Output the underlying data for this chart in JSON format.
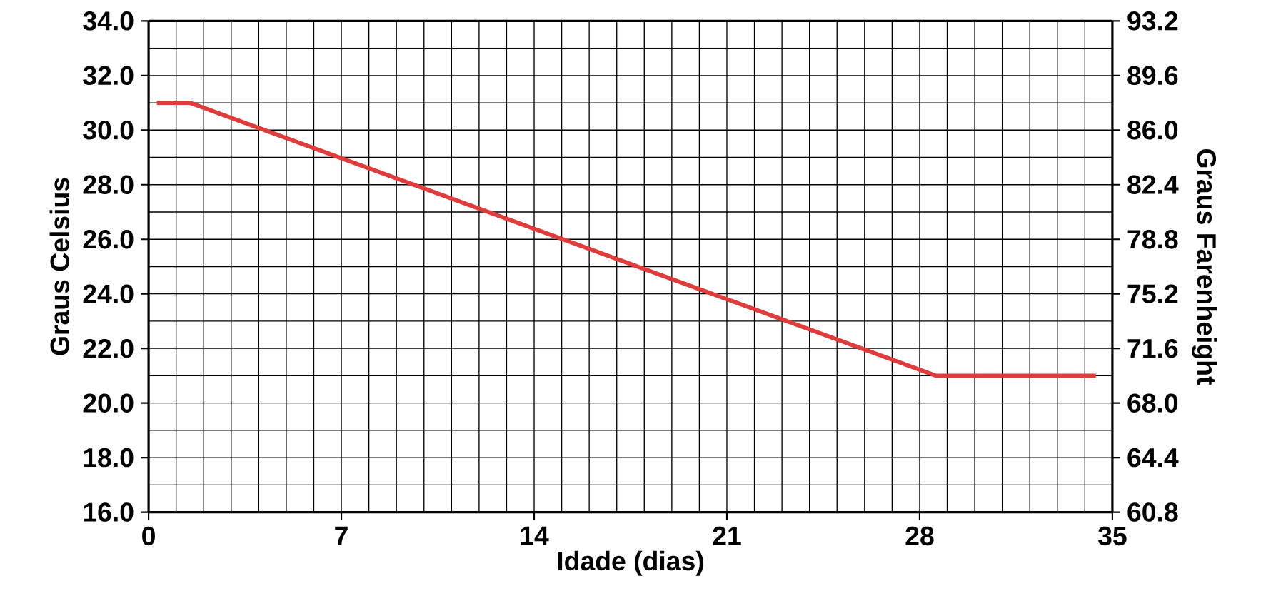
{
  "chart_data": {
    "type": "line",
    "xlabel": "Idade (dias)",
    "ylabel": "Graus Celsius",
    "y2label": "Graus Farenheight",
    "x": [
      0.3,
      1.5,
      28.6,
      34.4
    ],
    "series": [
      {
        "color": "#e03c3c",
        "values": [
          31.0,
          31.0,
          21.0,
          21.0
        ]
      }
    ],
    "xlim": [
      0,
      35
    ],
    "xticks": [
      0,
      7,
      14,
      21,
      28,
      35
    ],
    "ylim": [
      16,
      34
    ],
    "yticks": [
      {
        "value": 16,
        "label": "16.0"
      },
      {
        "value": 18,
        "label": "18.0"
      },
      {
        "value": 20,
        "label": "20.0"
      },
      {
        "value": 22,
        "label": "22.0"
      },
      {
        "value": 24,
        "label": "24.0"
      },
      {
        "value": 26,
        "label": "26.0"
      },
      {
        "value": 28,
        "label": "28.0"
      },
      {
        "value": 30,
        "label": "30.0"
      },
      {
        "value": 32,
        "label": "32.0"
      },
      {
        "value": 34,
        "label": "34.0"
      }
    ],
    "y2lim": [
      60.8,
      93.2
    ],
    "y2ticks": [
      60.8,
      64.4,
      {
        "value": 68,
        "label": "68.0"
      },
      71.6,
      75.2,
      78.8,
      82.4,
      {
        "value": 86,
        "label": "86.0"
      },
      89.6,
      93.2
    ],
    "grid": true,
    "marker": "none",
    "line_style": "solid"
  }
}
